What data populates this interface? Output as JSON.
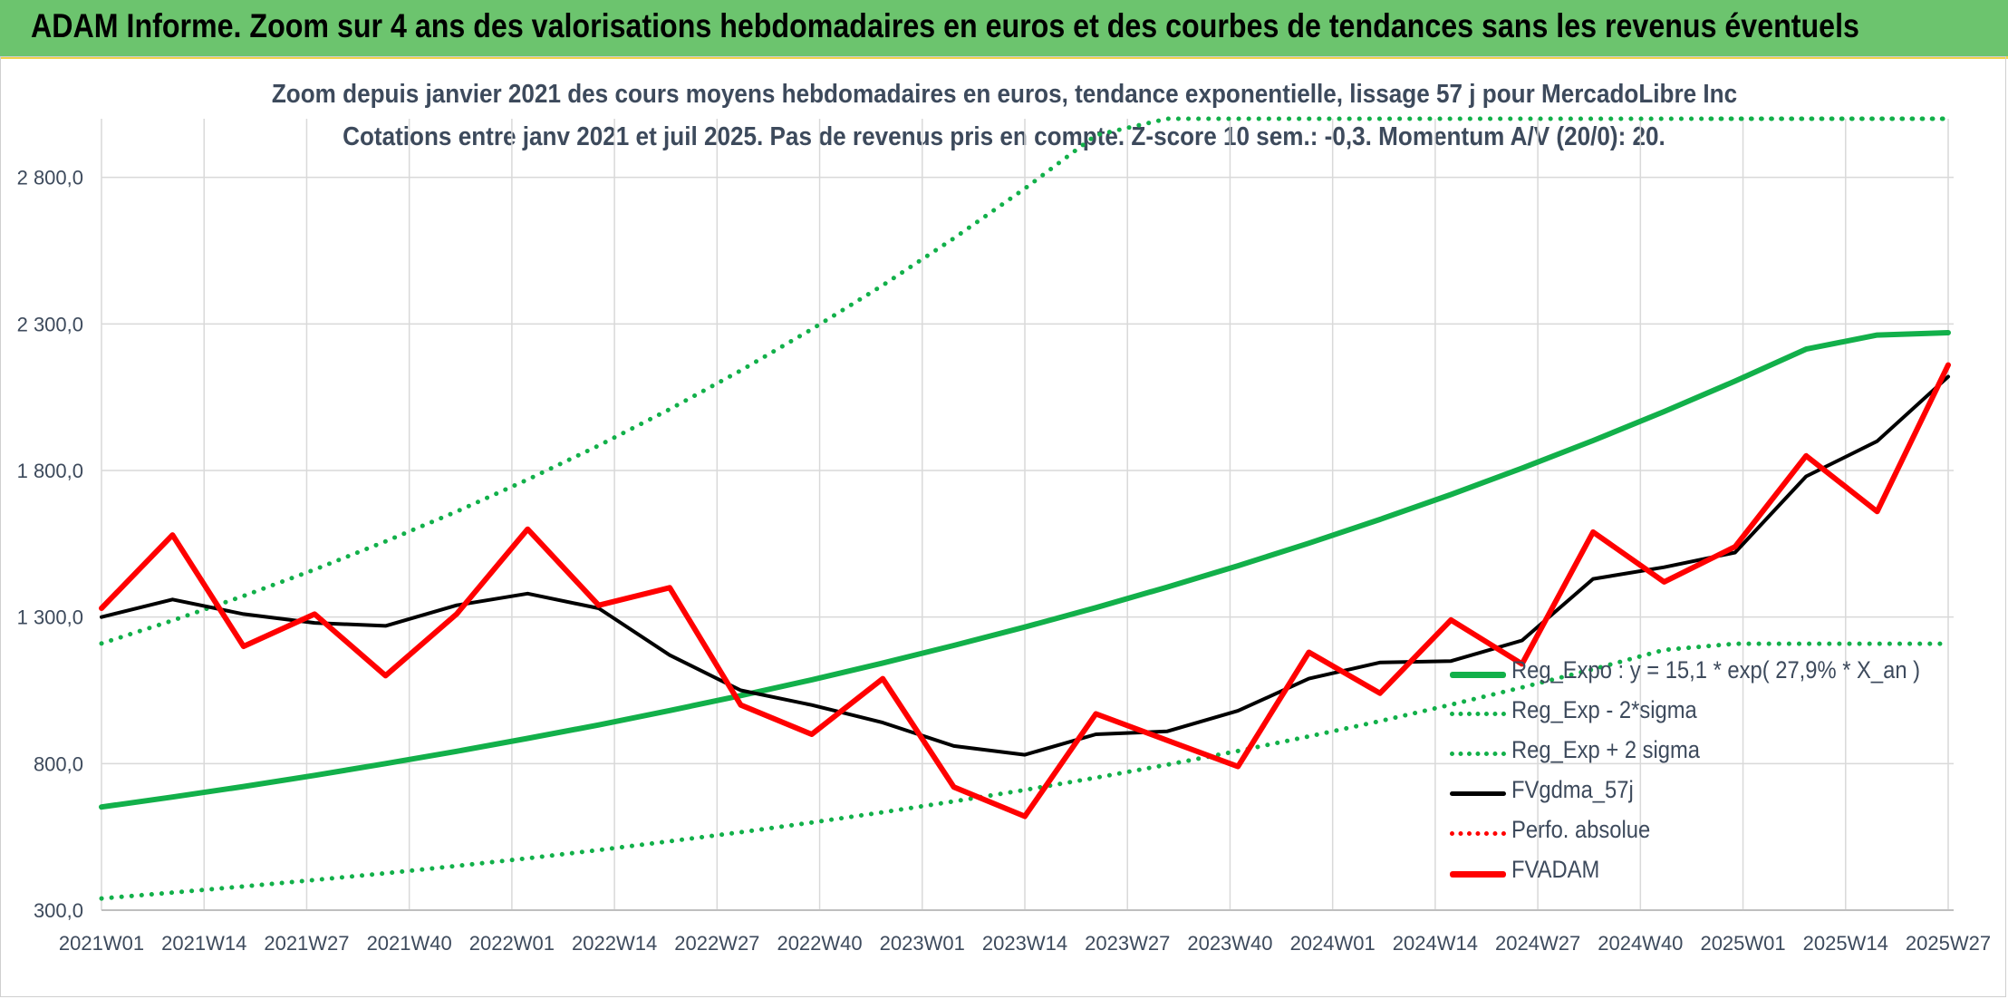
{
  "header": {
    "title": "ADAM Informe. Zoom sur 4 ans des valorisations hebdomadaires en euros et des courbes de tendances sans les revenus éventuels"
  },
  "chart_data": {
    "type": "line",
    "title": "Zoom depuis janvier 2021 des cours moyens hebdomadaires en euros, tendance exponentielle, lissage 57 j pour MercadoLibre Inc",
    "subtitle": "Cotations entre janv 2021 et juil 2025. Pas de revenus pris en compte. Z-score 10 sem.: -0,3. Momentum A/V (20/0): 20.",
    "ylim": [
      300,
      3000
    ],
    "y_ticks": [
      "300,0",
      "800,0",
      "1 300,0",
      "1 800,0",
      "2 300,0",
      "2 800,0"
    ],
    "x_ticks": [
      "2021W01",
      "2021W14",
      "2021W27",
      "2021W40",
      "2022W01",
      "2022W14",
      "2022W27",
      "2022W40",
      "2023W01",
      "2023W14",
      "2023W27",
      "2023W40",
      "2024W01",
      "2024W14",
      "2024W27",
      "2024W40",
      "2025W01",
      "2025W14",
      "2025W27"
    ],
    "grid": true,
    "legend_position": "bottom-right",
    "x_weeks": [
      0,
      9,
      18,
      27,
      36,
      45,
      54,
      63,
      72,
      81,
      90,
      99,
      108,
      117,
      126,
      135,
      144,
      153,
      162,
      171,
      180,
      189,
      198,
      207,
      216,
      225,
      234
    ],
    "series": [
      {
        "name": "Reg_Expo : y = 15,1 * exp( 27,9% * X_an )",
        "color": "#12b04a",
        "style": "solid",
        "values": [
          652,
          686,
          722,
          760,
          800,
          842,
          886,
          932,
          981,
          1032,
          1086,
          1143,
          1203,
          1266,
          1332,
          1402,
          1475,
          1552,
          1633,
          1718,
          1808,
          1902,
          2001,
          2105,
          2214,
          2262,
          2270
        ]
      },
      {
        "name": "Reg_Exp - 2*sigma",
        "color": "#12b04a",
        "style": "dotted",
        "values": [
          340,
          360,
          381,
          403,
          426,
          451,
          477,
          505,
          535,
          566,
          599,
          634,
          671,
          710,
          752,
          796,
          843,
          893,
          945,
          1001,
          1060,
          1122,
          1188,
          1209,
          1209,
          1209,
          1209
        ]
      },
      {
        "name": "Reg_Exp + 2 sigma",
        "color": "#12b04a",
        "style": "dotted",
        "values": [
          1210,
          1288,
          1372,
          1462,
          1558,
          1660,
          1769,
          1885,
          2009,
          2141,
          2282,
          2432,
          2592,
          2762,
          2944,
          3000,
          3000,
          3000,
          3000,
          3000,
          3000,
          3000,
          3000,
          3000,
          3000,
          3000,
          3000
        ]
      },
      {
        "name": "FVgdma_57j",
        "color": "#000000",
        "style": "solid",
        "values": [
          1300,
          1360,
          1310,
          1280,
          1270,
          1340,
          1380,
          1330,
          1170,
          1050,
          1000,
          940,
          860,
          830,
          900,
          910,
          980,
          1090,
          1145,
          1150,
          1220,
          1430,
          1470,
          1520,
          1780,
          1900,
          2120
        ]
      },
      {
        "name": "Perfo. absolue",
        "color": "#ff0000",
        "style": "dotted",
        "values": []
      },
      {
        "name": "FVADAM",
        "color": "#ff0000",
        "style": "solid",
        "values": [
          1330,
          1580,
          1200,
          1310,
          1100,
          1310,
          1600,
          1340,
          1400,
          1000,
          900,
          1090,
          720,
          620,
          970,
          880,
          790,
          1180,
          1040,
          1290,
          1140,
          1590,
          1420,
          1540,
          1850,
          1660,
          2160
        ]
      }
    ]
  }
}
